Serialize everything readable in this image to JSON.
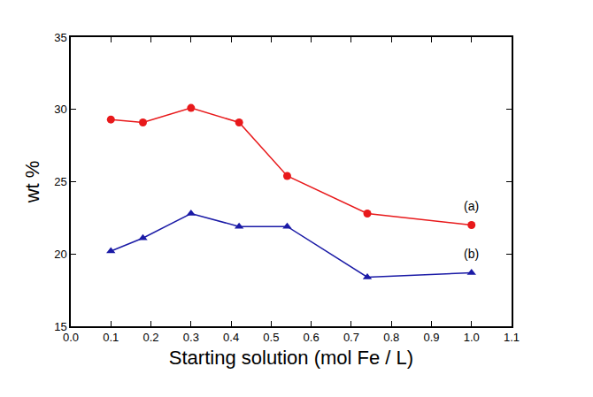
{
  "chart_data": {
    "type": "line",
    "x_label": "Starting solution (mol Fe / L)",
    "y_label": "wt %",
    "x": [
      0.1,
      0.18,
      0.3,
      0.42,
      0.54,
      0.74,
      1.0
    ],
    "series": [
      {
        "name": "(a)",
        "color": "#e8191b",
        "marker": "circle",
        "line_style": "solid",
        "values": [
          29.3,
          29.1,
          30.1,
          29.1,
          25.4,
          22.8,
          22.0
        ]
      },
      {
        "name": "(b)",
        "color": "#1a1aa6",
        "marker": "triangle-up",
        "line_style": "solid",
        "values": [
          20.2,
          21.1,
          22.8,
          21.9,
          21.9,
          18.4,
          18.7
        ]
      }
    ],
    "xlim": [
      0,
      1.1
    ],
    "xticks": [
      {
        "value": 0,
        "label": "0.0"
      },
      0.1,
      0.2,
      0.3,
      0.4,
      0.5,
      0.6,
      0.7,
      0.8,
      0.9,
      {
        "value": 1,
        "label": "1.0"
      },
      1.1
    ],
    "ylim": [
      15,
      35
    ],
    "yticks": [
      15,
      20,
      25,
      30,
      35
    ],
    "grid": false
  }
}
